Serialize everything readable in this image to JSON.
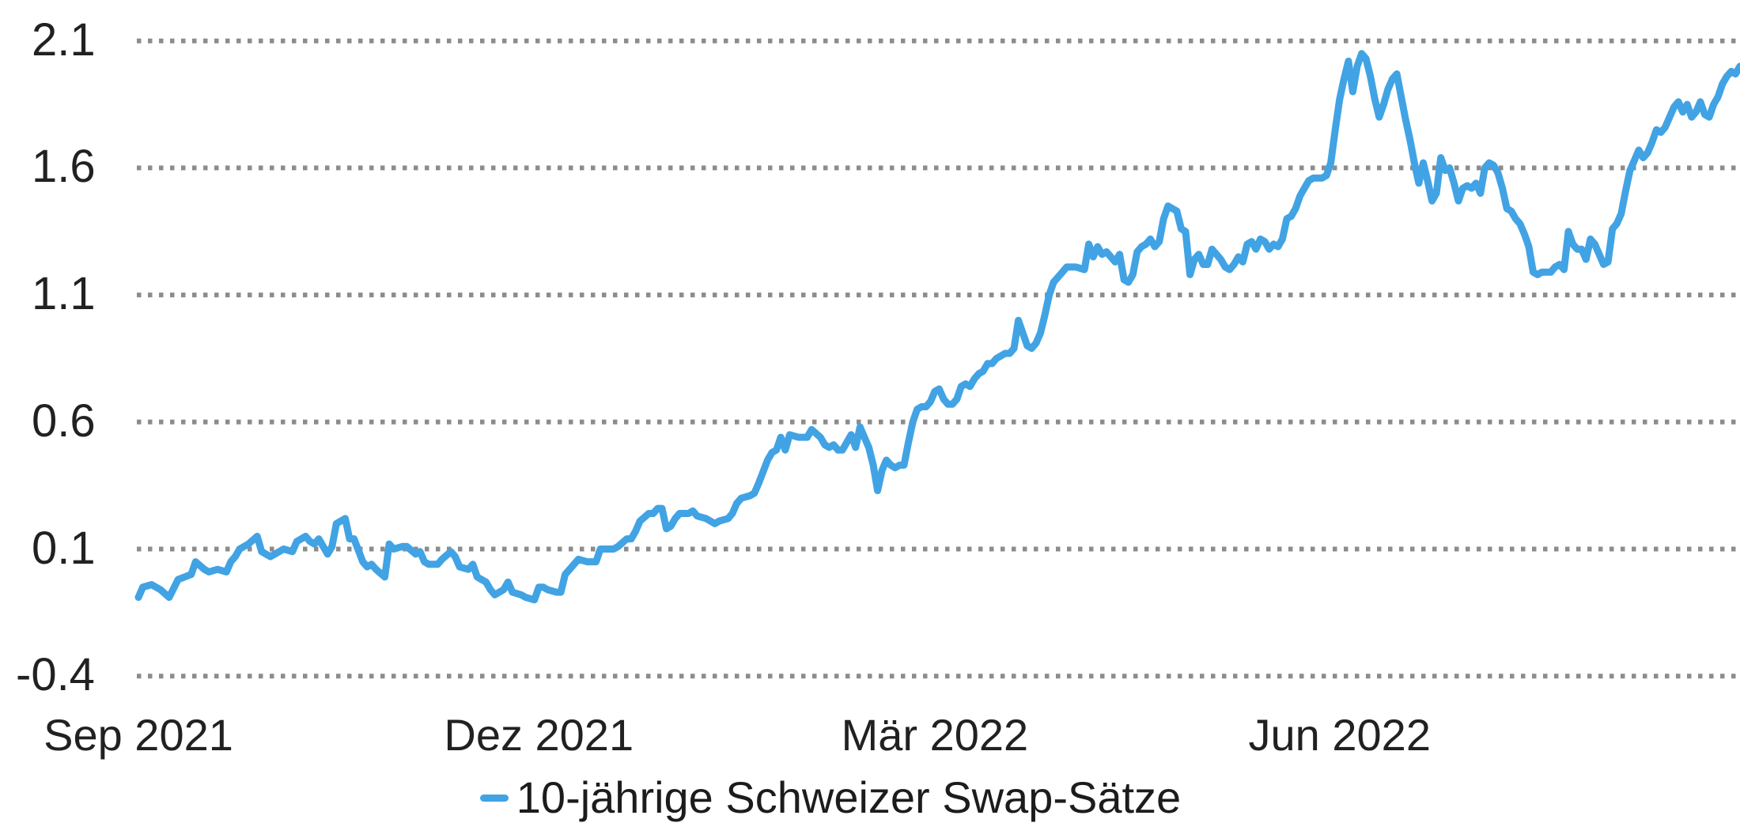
{
  "chart": {
    "legend_label": "10-jährige Schweizer Swap-Sätze",
    "colors": {
      "line": "#41a3e4",
      "grid": "#8c8c8c",
      "text": "#212121",
      "background": "#ffffff"
    }
  },
  "chart_data": {
    "type": "line",
    "title": "",
    "xlabel": "",
    "ylabel": "",
    "legend_position": "bottom-center",
    "grid": "horizontal-dotted",
    "y_ticks": [
      2.1,
      1.6,
      1.1,
      0.6,
      0.1,
      -0.4
    ],
    "y_tick_labels": [
      "2.1",
      "1.6",
      "1.1",
      "0.6",
      "0.1",
      "-0.4"
    ],
    "ylim": [
      -0.4,
      2.1
    ],
    "x_unit": "days since start (Sep 2021)",
    "x_range_days": [
      0,
      364
    ],
    "x_tick_positions_days": [
      0,
      91,
      181,
      273
    ],
    "x_tick_labels": [
      "Sep 2021",
      "Dez 2021",
      "Mär 2022",
      "Jun 2022"
    ],
    "series": [
      {
        "name": "10-jährige Schweizer Swap-Sätze",
        "unit": "percent",
        "points": [
          [
            0,
            -0.09
          ],
          [
            1,
            -0.05
          ],
          [
            3,
            -0.04
          ],
          [
            5,
            -0.06
          ],
          [
            7,
            -0.09
          ],
          [
            9,
            -0.02
          ],
          [
            12,
            0
          ],
          [
            13,
            0.05
          ],
          [
            15,
            0.02
          ],
          [
            16,
            0.01
          ],
          [
            18,
            0.02
          ],
          [
            20,
            0.01
          ],
          [
            21,
            0.05
          ],
          [
            22,
            0.07
          ],
          [
            23,
            0.1
          ],
          [
            25,
            0.12
          ],
          [
            27,
            0.15
          ],
          [
            28,
            0.09
          ],
          [
            30,
            0.07
          ],
          [
            31,
            0.08
          ],
          [
            33,
            0.1
          ],
          [
            35,
            0.09
          ],
          [
            36,
            0.13
          ],
          [
            38,
            0.15
          ],
          [
            39,
            0.13
          ],
          [
            40,
            0.12
          ],
          [
            41,
            0.14
          ],
          [
            43,
            0.08
          ],
          [
            44,
            0.11
          ],
          [
            45,
            0.2
          ],
          [
            47,
            0.22
          ],
          [
            48,
            0.14
          ],
          [
            49,
            0.14
          ],
          [
            51,
            0.05
          ],
          [
            52,
            0.03
          ],
          [
            53,
            0.04
          ],
          [
            54,
            0.02
          ],
          [
            56,
            -0.01
          ],
          [
            57,
            0.12
          ],
          [
            58,
            0.1
          ],
          [
            60,
            0.11
          ],
          [
            61,
            0.11
          ],
          [
            63,
            0.08
          ],
          [
            64,
            0.09
          ],
          [
            65,
            0.05
          ],
          [
            66,
            0.04
          ],
          [
            68,
            0.04
          ],
          [
            69,
            0.06
          ],
          [
            71,
            0.09
          ],
          [
            72,
            0.07
          ],
          [
            73,
            0.03
          ],
          [
            75,
            0.02
          ],
          [
            76,
            0.04
          ],
          [
            77,
            -0.01
          ],
          [
            79,
            -0.03
          ],
          [
            80,
            -0.06
          ],
          [
            81,
            -0.08
          ],
          [
            83,
            -0.06
          ],
          [
            84,
            -0.03
          ],
          [
            85,
            -0.07
          ],
          [
            87,
            -0.08
          ],
          [
            88,
            -0.09
          ],
          [
            90,
            -0.1
          ],
          [
            91,
            -0.05
          ],
          [
            92,
            -0.05
          ],
          [
            93,
            -0.06
          ],
          [
            95,
            -0.07
          ],
          [
            96,
            -0.07
          ],
          [
            97,
            0
          ],
          [
            98,
            0.02
          ],
          [
            100,
            0.06
          ],
          [
            102,
            0.05
          ],
          [
            104,
            0.05
          ],
          [
            105,
            0.1
          ],
          [
            107,
            0.1
          ],
          [
            108,
            0.1
          ],
          [
            109,
            0.11
          ],
          [
            111,
            0.14
          ],
          [
            112,
            0.14
          ],
          [
            113,
            0.17
          ],
          [
            114,
            0.21
          ],
          [
            116,
            0.24
          ],
          [
            117,
            0.24
          ],
          [
            118,
            0.26
          ],
          [
            119,
            0.26
          ],
          [
            120,
            0.18
          ],
          [
            121,
            0.19
          ],
          [
            122,
            0.22
          ],
          [
            123,
            0.24
          ],
          [
            125,
            0.24
          ],
          [
            126,
            0.25
          ],
          [
            127,
            0.23
          ],
          [
            129,
            0.22
          ],
          [
            130,
            0.21
          ],
          [
            131,
            0.2
          ],
          [
            132,
            0.21
          ],
          [
            134,
            0.22
          ],
          [
            135,
            0.24
          ],
          [
            136,
            0.28
          ],
          [
            137,
            0.3
          ],
          [
            139,
            0.31
          ],
          [
            140,
            0.32
          ],
          [
            141,
            0.36
          ],
          [
            143,
            0.45
          ],
          [
            144,
            0.48
          ],
          [
            145,
            0.49
          ],
          [
            146,
            0.54
          ],
          [
            147,
            0.49
          ],
          [
            148,
            0.55
          ],
          [
            150,
            0.54
          ],
          [
            152,
            0.54
          ],
          [
            153,
            0.57
          ],
          [
            155,
            0.54
          ],
          [
            156,
            0.51
          ],
          [
            157,
            0.5
          ],
          [
            158,
            0.51
          ],
          [
            159,
            0.49
          ],
          [
            160,
            0.49
          ],
          [
            161,
            0.52
          ],
          [
            162,
            0.55
          ],
          [
            163,
            0.5
          ],
          [
            164,
            0.58
          ],
          [
            165,
            0.54
          ],
          [
            166,
            0.5
          ],
          [
            167,
            0.43
          ],
          [
            168,
            0.33
          ],
          [
            169,
            0.41
          ],
          [
            170,
            0.45
          ],
          [
            171,
            0.43
          ],
          [
            172,
            0.42
          ],
          [
            173,
            0.43
          ],
          [
            174,
            0.43
          ],
          [
            175,
            0.52
          ],
          [
            176,
            0.6
          ],
          [
            177,
            0.65
          ],
          [
            178,
            0.66
          ],
          [
            179,
            0.66
          ],
          [
            180,
            0.68
          ],
          [
            181,
            0.72
          ],
          [
            182,
            0.73
          ],
          [
            183,
            0.69
          ],
          [
            184,
            0.67
          ],
          [
            185,
            0.67
          ],
          [
            186,
            0.69
          ],
          [
            187,
            0.74
          ],
          [
            188,
            0.75
          ],
          [
            189,
            0.74
          ],
          [
            190,
            0.77
          ],
          [
            191,
            0.79
          ],
          [
            192,
            0.8
          ],
          [
            193,
            0.83
          ],
          [
            194,
            0.83
          ],
          [
            195,
            0.85
          ],
          [
            196,
            0.86
          ],
          [
            197,
            0.87
          ],
          [
            198,
            0.87
          ],
          [
            199,
            0.89
          ],
          [
            200,
            1
          ],
          [
            201,
            0.95
          ],
          [
            202,
            0.9
          ],
          [
            203,
            0.89
          ],
          [
            204,
            0.91
          ],
          [
            205,
            0.95
          ],
          [
            206,
            1.02
          ],
          [
            207,
            1.1
          ],
          [
            208,
            1.15
          ],
          [
            210,
            1.19
          ],
          [
            211,
            1.21
          ],
          [
            213,
            1.21
          ],
          [
            215,
            1.2
          ],
          [
            216,
            1.3
          ],
          [
            217,
            1.25
          ],
          [
            218,
            1.29
          ],
          [
            219,
            1.26
          ],
          [
            220,
            1.27
          ],
          [
            221,
            1.25
          ],
          [
            222,
            1.23
          ],
          [
            223,
            1.26
          ],
          [
            224,
            1.16
          ],
          [
            225,
            1.15
          ],
          [
            226,
            1.18
          ],
          [
            227,
            1.27
          ],
          [
            228,
            1.29
          ],
          [
            229,
            1.3
          ],
          [
            230,
            1.32
          ],
          [
            231,
            1.29
          ],
          [
            232,
            1.31
          ],
          [
            233,
            1.4
          ],
          [
            234,
            1.45
          ],
          [
            236,
            1.43
          ],
          [
            237,
            1.36
          ],
          [
            238,
            1.35
          ],
          [
            239,
            1.18
          ],
          [
            240,
            1.24
          ],
          [
            241,
            1.26
          ],
          [
            242,
            1.22
          ],
          [
            243,
            1.22
          ],
          [
            244,
            1.28
          ],
          [
            245,
            1.26
          ],
          [
            246,
            1.24
          ],
          [
            247,
            1.21
          ],
          [
            248,
            1.2
          ],
          [
            249,
            1.22
          ],
          [
            250,
            1.25
          ],
          [
            251,
            1.23
          ],
          [
            252,
            1.3
          ],
          [
            253,
            1.31
          ],
          [
            254,
            1.28
          ],
          [
            255,
            1.32
          ],
          [
            256,
            1.31
          ],
          [
            257,
            1.28
          ],
          [
            258,
            1.3
          ],
          [
            259,
            1.29
          ],
          [
            260,
            1.32
          ],
          [
            261,
            1.4
          ],
          [
            262,
            1.41
          ],
          [
            263,
            1.44
          ],
          [
            264,
            1.49
          ],
          [
            265,
            1.52
          ],
          [
            266,
            1.55
          ],
          [
            267,
            1.56
          ],
          [
            269,
            1.56
          ],
          [
            270,
            1.57
          ],
          [
            271,
            1.62
          ],
          [
            272,
            1.75
          ],
          [
            273,
            1.87
          ],
          [
            274,
            1.95
          ],
          [
            275,
            2.02
          ],
          [
            276,
            1.9
          ],
          [
            277,
            2
          ],
          [
            278,
            2.05
          ],
          [
            279,
            2.03
          ],
          [
            280,
            1.96
          ],
          [
            281,
            1.87
          ],
          [
            282,
            1.8
          ],
          [
            283,
            1.85
          ],
          [
            284,
            1.91
          ],
          [
            285,
            1.95
          ],
          [
            286,
            1.97
          ],
          [
            287,
            1.88
          ],
          [
            288,
            1.79
          ],
          [
            289,
            1.71
          ],
          [
            290,
            1.62
          ],
          [
            291,
            1.54
          ],
          [
            292,
            1.62
          ],
          [
            293,
            1.55
          ],
          [
            294,
            1.47
          ],
          [
            295,
            1.5
          ],
          [
            296,
            1.64
          ],
          [
            297,
            1.59
          ],
          [
            298,
            1.6
          ],
          [
            299,
            1.54
          ],
          [
            300,
            1.47
          ],
          [
            301,
            1.52
          ],
          [
            302,
            1.53
          ],
          [
            303,
            1.52
          ],
          [
            304,
            1.54
          ],
          [
            305,
            1.5
          ],
          [
            306,
            1.6
          ],
          [
            307,
            1.62
          ],
          [
            308,
            1.61
          ],
          [
            309,
            1.58
          ],
          [
            310,
            1.52
          ],
          [
            311,
            1.44
          ],
          [
            312,
            1.43
          ],
          [
            313,
            1.4
          ],
          [
            314,
            1.38
          ],
          [
            315,
            1.34
          ],
          [
            316,
            1.29
          ],
          [
            317,
            1.19
          ],
          [
            318,
            1.18
          ],
          [
            319,
            1.19
          ],
          [
            320,
            1.19
          ],
          [
            321,
            1.19
          ],
          [
            322,
            1.21
          ],
          [
            323,
            1.22
          ],
          [
            324,
            1.2
          ],
          [
            325,
            1.35
          ],
          [
            326,
            1.3
          ],
          [
            327,
            1.28
          ],
          [
            328,
            1.28
          ],
          [
            329,
            1.24
          ],
          [
            330,
            1.32
          ],
          [
            331,
            1.3
          ],
          [
            332,
            1.26
          ],
          [
            333,
            1.22
          ],
          [
            334,
            1.23
          ],
          [
            335,
            1.36
          ],
          [
            336,
            1.38
          ],
          [
            337,
            1.42
          ],
          [
            338,
            1.51
          ],
          [
            339,
            1.59
          ],
          [
            340,
            1.63
          ],
          [
            341,
            1.67
          ],
          [
            342,
            1.64
          ],
          [
            343,
            1.66
          ],
          [
            344,
            1.7
          ],
          [
            345,
            1.75
          ],
          [
            346,
            1.74
          ],
          [
            347,
            1.76
          ],
          [
            348,
            1.8
          ],
          [
            349,
            1.84
          ],
          [
            350,
            1.86
          ],
          [
            351,
            1.82
          ],
          [
            352,
            1.85
          ],
          [
            353,
            1.8
          ],
          [
            354,
            1.82
          ],
          [
            355,
            1.86
          ],
          [
            356,
            1.81
          ],
          [
            357,
            1.8
          ],
          [
            358,
            1.85
          ],
          [
            359,
            1.88
          ],
          [
            360,
            1.93
          ],
          [
            361,
            1.96
          ],
          [
            362,
            1.98
          ],
          [
            363,
            1.97
          ],
          [
            364,
            2
          ]
        ]
      }
    ]
  }
}
